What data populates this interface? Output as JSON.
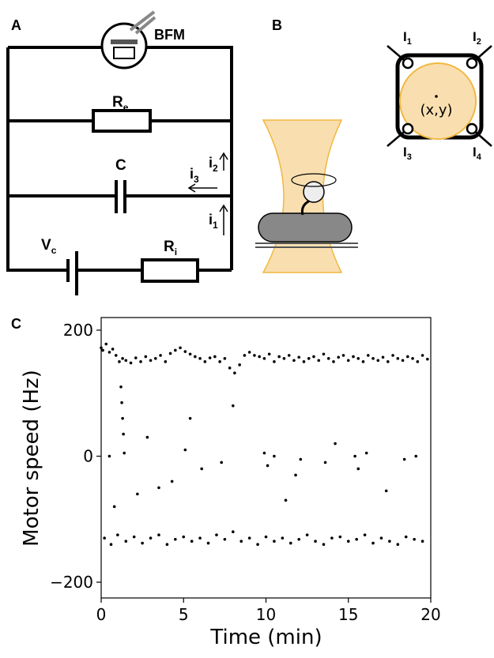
{
  "panel_a": {
    "label": "A",
    "bfm": "BFM",
    "re": {
      "main": "R",
      "sub": "e"
    },
    "c": "C",
    "i2": {
      "main": "i",
      "sub": "2"
    },
    "i3": {
      "main": "i",
      "sub": "3"
    },
    "i1": {
      "main": "i",
      "sub": "1"
    },
    "vc": {
      "main": "V",
      "sub": "c"
    },
    "ri": {
      "main": "R",
      "sub": "i"
    }
  },
  "panel_b": {
    "label": "B",
    "q1": {
      "main": "I",
      "sub": "1"
    },
    "q2": {
      "main": "I",
      "sub": "2"
    },
    "q3": {
      "main": "I",
      "sub": "3"
    },
    "q4": {
      "main": "I",
      "sub": "4"
    },
    "position": "(x,y)"
  },
  "panel_c": {
    "label": "C"
  },
  "chart_data": {
    "type": "scatter",
    "xlabel": "Time (min)",
    "ylabel": "Motor speed (Hz)",
    "color": "#000000",
    "xlim": [
      0,
      20
    ],
    "ylim": [
      -225,
      220
    ],
    "xticks": [
      0,
      5,
      10,
      15,
      20
    ],
    "yticks": [
      {
        "value": -200,
        "label": "−200"
      },
      0,
      200
    ],
    "x": [
      0,
      0.1,
      0.3,
      0.5,
      0.7,
      0.9,
      1.1,
      1.3,
      1.5,
      1.8,
      2.1,
      2.4,
      2.7,
      3,
      3.3,
      3.6,
      3.9,
      4.2,
      4.5,
      4.8,
      5.1,
      5.4,
      5.7,
      6,
      6.3,
      6.6,
      6.9,
      7.2,
      7.5,
      7.8,
      8.1,
      8.4,
      8.7,
      9,
      9.3,
      9.6,
      9.9,
      10.2,
      10.5,
      10.8,
      11.1,
      11.4,
      11.7,
      12,
      12.3,
      12.6,
      12.9,
      13.2,
      13.5,
      13.8,
      14.1,
      14.4,
      14.7,
      15,
      15.3,
      15.6,
      15.9,
      16.2,
      16.5,
      16.8,
      17.1,
      17.4,
      17.7,
      18,
      18.3,
      18.6,
      18.9,
      19.2,
      19.5,
      19.8,
      0.2,
      0.6,
      1,
      1.5,
      2,
      2.5,
      3,
      3.5,
      4,
      4.5,
      5,
      5.5,
      6,
      6.5,
      7,
      7.5,
      8,
      8.5,
      9,
      9.5,
      10,
      10.5,
      11,
      11.5,
      12,
      12.5,
      13,
      13.5,
      14,
      14.5,
      15,
      15.5,
      16,
      16.5,
      17,
      17.5,
      18,
      18.5,
      19,
      19.5,
      1.2,
      1.25,
      1.3,
      1.35,
      0.5,
      1.4,
      2.2,
      2.8,
      3.5,
      4.3,
      5.1,
      6.1,
      7.3,
      8,
      9.9,
      10.1,
      10.5,
      11.2,
      12.1,
      13.6,
      14.2,
      15.4,
      15.6,
      16.1,
      17.3,
      18.4,
      19.1,
      0.8,
      5.4,
      11.8
    ],
    "values": [
      172,
      168,
      178,
      165,
      170,
      160,
      150,
      155,
      152,
      148,
      156,
      150,
      158,
      152,
      155,
      160,
      150,
      163,
      168,
      172,
      166,
      162,
      158,
      155,
      150,
      156,
      158,
      150,
      155,
      140,
      132,
      145,
      160,
      165,
      160,
      158,
      155,
      162,
      150,
      158,
      155,
      160,
      152,
      157,
      150,
      155,
      158,
      152,
      162,
      155,
      150,
      157,
      160,
      152,
      158,
      155,
      150,
      160,
      155,
      152,
      157,
      150,
      160,
      155,
      152,
      158,
      155,
      150,
      160,
      154,
      -130,
      -140,
      -125,
      -135,
      -128,
      -138,
      -130,
      -125,
      -140,
      -132,
      -128,
      -135,
      -130,
      -138,
      -125,
      -132,
      -120,
      -135,
      -130,
      -140,
      -128,
      -135,
      -130,
      -138,
      -132,
      -125,
      -135,
      -140,
      -130,
      -128,
      -135,
      -132,
      -125,
      -138,
      -130,
      -135,
      -140,
      -128,
      -132,
      -135,
      110,
      85,
      60,
      35,
      0,
      5,
      -60,
      30,
      -50,
      -40,
      10,
      -20,
      -10,
      80,
      5,
      -15,
      0,
      -70,
      -5,
      -10,
      20,
      0,
      -20,
      5,
      -55,
      -5,
      0,
      -80,
      60,
      -30
    ]
  }
}
